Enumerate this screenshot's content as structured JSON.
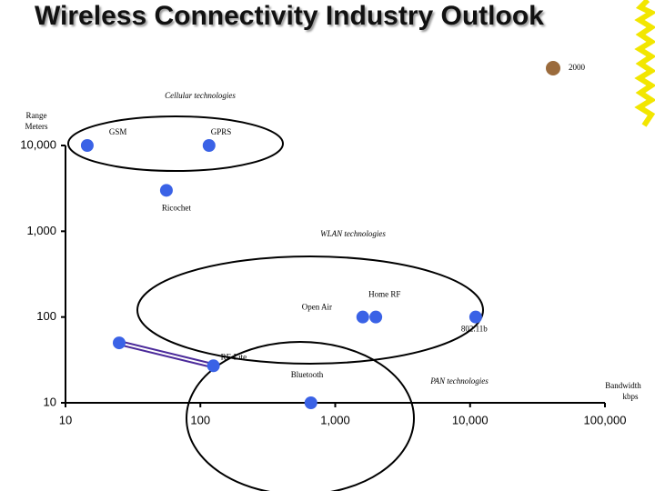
{
  "chart_data": {
    "type": "scatter",
    "title": "Wireless Connectivity Industry Outlook",
    "legend": {
      "label": "2000",
      "color": "#9b6b3c"
    },
    "xlabel": [
      "Bandwidth",
      "kbps"
    ],
    "ylabel": [
      "Range",
      "Meters"
    ],
    "log_x": true,
    "log_y": true,
    "xlim": [
      10,
      100000
    ],
    "ylim": [
      10,
      10000
    ],
    "xticks": [
      10,
      100,
      {
        "value": 1000,
        "label": "1,000"
      },
      {
        "value": 10000,
        "label": "10,000"
      },
      {
        "value": 100000,
        "label": "100,000"
      }
    ],
    "yticks": [
      10,
      100,
      {
        "value": 1000,
        "label": "1,000"
      },
      {
        "value": 10000,
        "label": "10,000"
      }
    ],
    "color": "#3a62e6",
    "points": [
      {
        "label": "GSM",
        "x": 14.5,
        "y": 10000
      },
      {
        "label": "GPRS",
        "x": 116,
        "y": 10000
      },
      {
        "label": "Ricochet",
        "x": 56,
        "y": 3000
      },
      {
        "label": "Open Air",
        "x": 1600,
        "y": 100
      },
      {
        "label": "Home RF",
        "x": 2000,
        "y": 100
      },
      {
        "label": "802.11b",
        "x": 11000,
        "y": 100
      },
      {
        "label": "Bluetooth",
        "x": 660,
        "y": 10
      }
    ],
    "lines": [
      {
        "label": "RF-Lite",
        "x": [
          25,
          125
        ],
        "y": [
          50,
          27
        ]
      }
    ],
    "regions": [
      "Cellular technologies",
      "WLAN technologies",
      "PAN technologies"
    ]
  }
}
